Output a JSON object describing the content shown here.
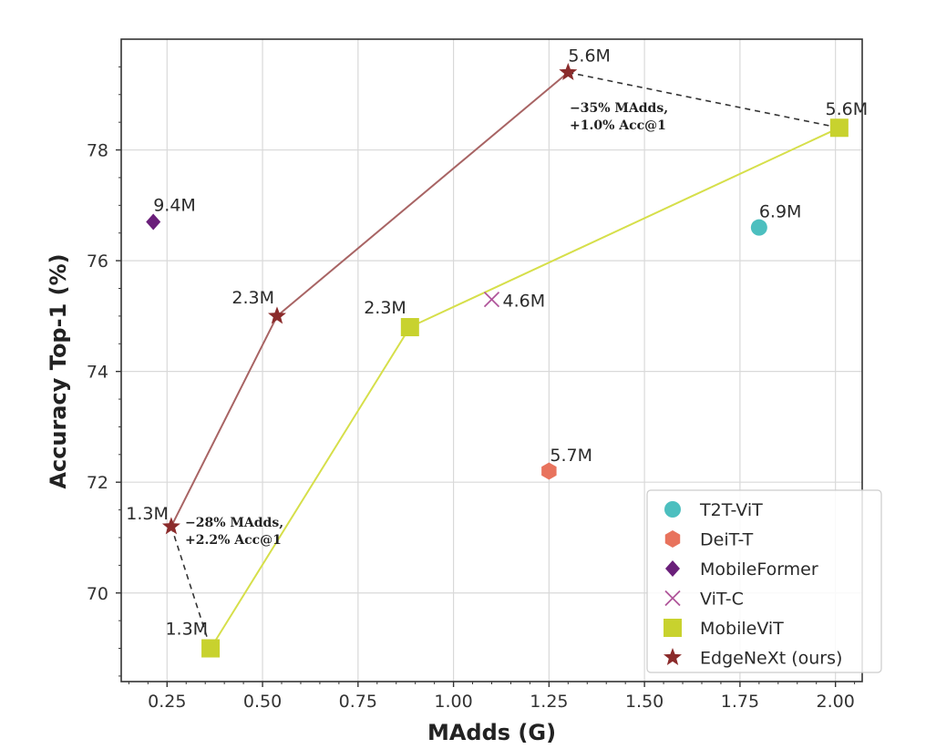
{
  "chart_data": {
    "type": "scatter",
    "xlabel": "MAdds (G)",
    "ylabel": "Accuracy Top-1 (%)",
    "xlim": [
      0.13,
      2.07
    ],
    "ylim": [
      68.4,
      80.0
    ],
    "xticks": [
      0.25,
      0.5,
      0.75,
      1.0,
      1.25,
      1.5,
      1.75,
      2.0
    ],
    "xtick_labels": [
      "0.25",
      "0.50",
      "0.75",
      "1.00",
      "1.25",
      "1.50",
      "1.75",
      "2.00"
    ],
    "yticks": [
      70,
      72,
      74,
      76,
      78
    ],
    "ytick_labels": [
      "70",
      "72",
      "74",
      "76",
      "78"
    ],
    "grid": true,
    "legend_position": "bottom-right",
    "series": [
      {
        "name": "T2T-ViT",
        "marker": "circle",
        "color": "#4cbfbf",
        "line": false,
        "points": [
          {
            "x": 1.8,
            "y": 76.6,
            "label": "6.9M"
          }
        ]
      },
      {
        "name": "DeiT-T",
        "marker": "hexagon",
        "color": "#e8735d",
        "line": false,
        "points": [
          {
            "x": 1.25,
            "y": 72.2,
            "label": "5.7M"
          }
        ]
      },
      {
        "name": "MobileFormer",
        "marker": "diamond",
        "color": "#6a1f7a",
        "line": false,
        "points": [
          {
            "x": 0.214,
            "y": 76.7,
            "label": "9.4M"
          }
        ]
      },
      {
        "name": "ViT-C",
        "marker": "x",
        "color": "#b0559a",
        "line": false,
        "points": [
          {
            "x": 1.1,
            "y": 75.3,
            "label": "4.6M"
          }
        ]
      },
      {
        "name": "MobileViT",
        "marker": "square",
        "color": "#c8d22e",
        "line": true,
        "line_color": "#d6df4a",
        "points": [
          {
            "x": 0.364,
            "y": 69.0,
            "label": "1.3M"
          },
          {
            "x": 0.886,
            "y": 74.8,
            "label": "2.3M"
          },
          {
            "x": 2.01,
            "y": 78.4,
            "label": "5.6M"
          }
        ]
      },
      {
        "name": "EdgeNeXt (ours)",
        "marker": "star",
        "color": "#8b2b2b",
        "line": true,
        "line_color": "#a86464",
        "points": [
          {
            "x": 0.261,
            "y": 71.2,
            "label": "1.3M"
          },
          {
            "x": 0.538,
            "y": 75.0,
            "label": "2.3M"
          },
          {
            "x": 1.3,
            "y": 79.4,
            "label": "5.6M"
          }
        ]
      }
    ],
    "comparisons": [
      {
        "from": {
          "x": 0.261,
          "y": 71.2
        },
        "to": {
          "x": 0.364,
          "y": 69.0
        },
        "style": "dashed",
        "text": [
          "−28% MAdds,",
          "+2.2% Acc@1"
        ]
      },
      {
        "from": {
          "x": 1.3,
          "y": 79.4
        },
        "to": {
          "x": 2.01,
          "y": 78.4
        },
        "style": "dashed",
        "text": [
          "−35% MAdds,",
          "+1.0% Acc@1"
        ]
      }
    ]
  }
}
